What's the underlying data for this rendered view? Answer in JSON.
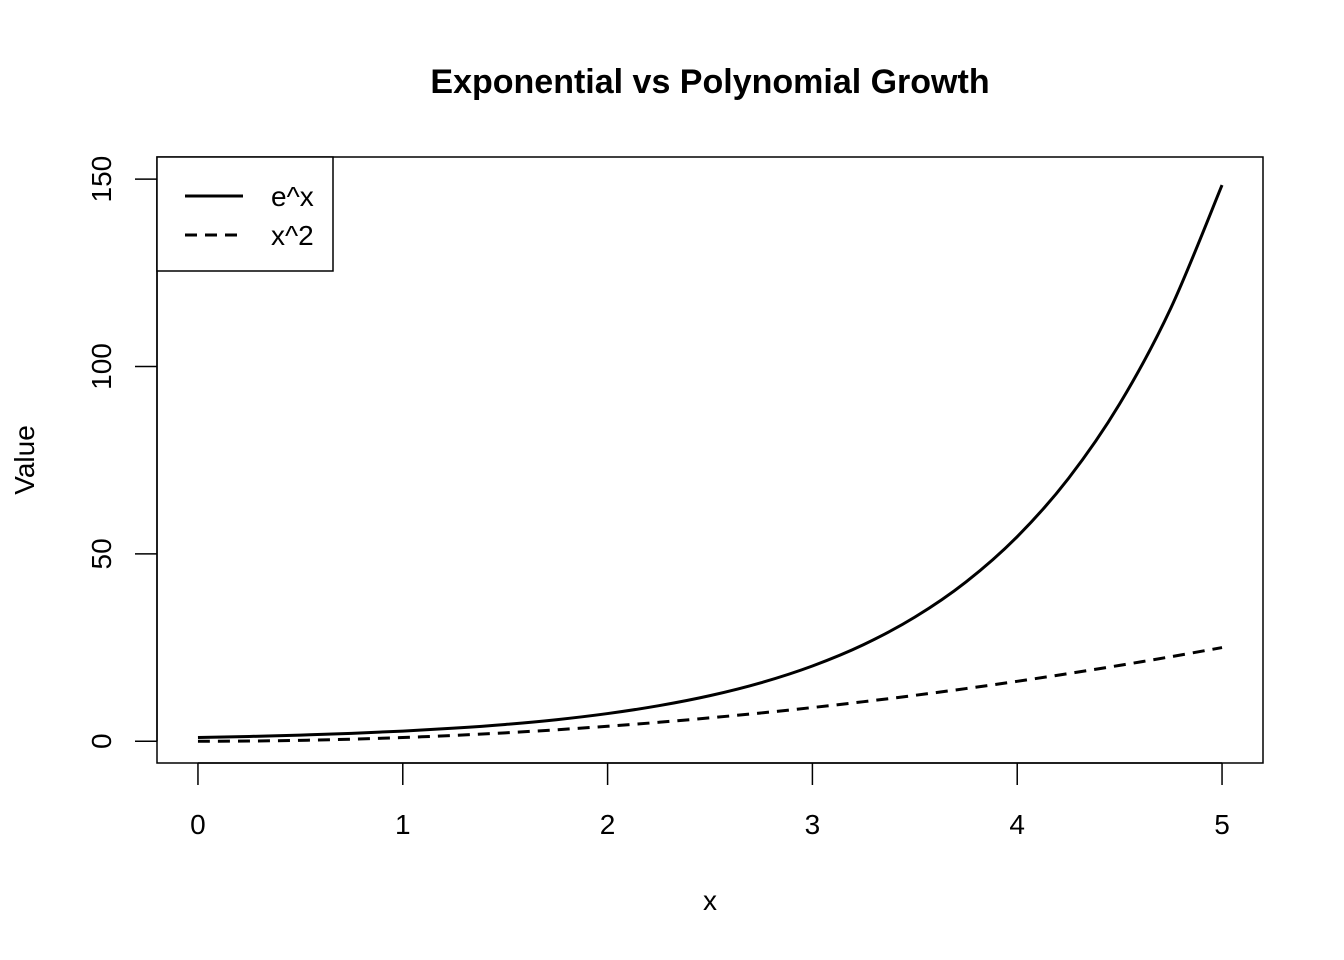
{
  "chart_data": {
    "type": "line",
    "title": "Exponential vs Polynomial Growth",
    "xlabel": "x",
    "ylabel": "Value",
    "xlim": [
      -0.2,
      5.2
    ],
    "ylim": [
      -5.8,
      155.9
    ],
    "x_ticks": [
      0,
      1,
      2,
      3,
      4,
      5
    ],
    "y_ticks": [
      0,
      50,
      100,
      150
    ],
    "grid": false,
    "legend_position": "top-left",
    "x": [
      0,
      0.25,
      0.5,
      0.75,
      1,
      1.25,
      1.5,
      1.75,
      2,
      2.25,
      2.5,
      2.75,
      3,
      3.25,
      3.5,
      3.75,
      4,
      4.25,
      4.5,
      4.75,
      5
    ],
    "series": [
      {
        "name": "e^x",
        "style": "solid",
        "color": "#000000",
        "values": [
          1.0,
          1.28,
          1.65,
          2.12,
          2.72,
          3.49,
          4.48,
          5.75,
          7.39,
          9.49,
          12.18,
          15.64,
          20.09,
          25.79,
          33.12,
          42.52,
          54.6,
          70.11,
          90.02,
          115.58,
          148.41
        ]
      },
      {
        "name": "x^2",
        "style": "dashed",
        "color": "#000000",
        "values": [
          0.0,
          0.06,
          0.25,
          0.56,
          1.0,
          1.56,
          2.25,
          3.06,
          4.0,
          5.06,
          6.25,
          7.56,
          9.0,
          10.56,
          12.25,
          14.06,
          16.0,
          18.06,
          20.25,
          22.56,
          25.0
        ]
      }
    ]
  }
}
